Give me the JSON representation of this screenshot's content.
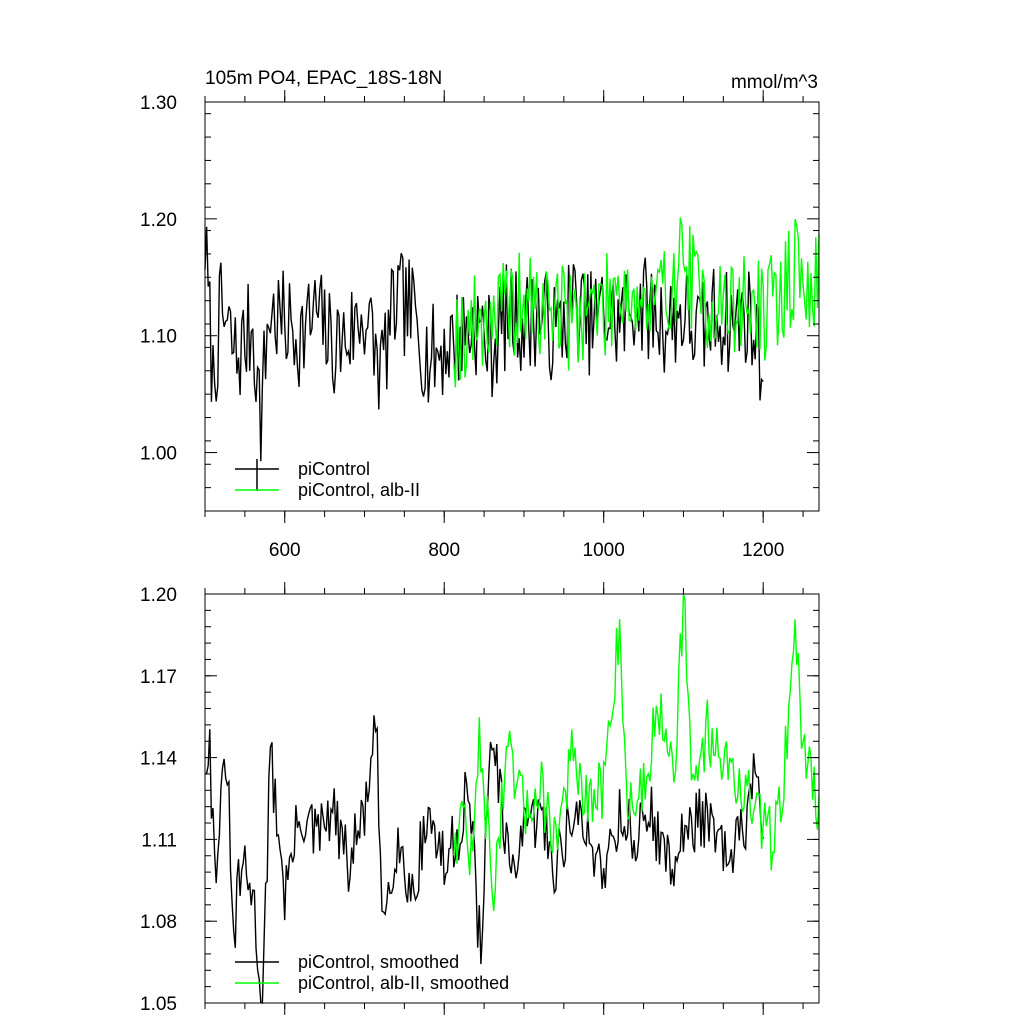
{
  "chart_data": [
    {
      "type": "line",
      "title_left": "105m PO4, EPAC_18S-18N",
      "title_right": "mmol/m^3",
      "xlim": [
        500,
        1270
      ],
      "ylim": [
        0.95,
        1.3
      ],
      "x_ticks": [
        600,
        800,
        1000,
        1200
      ],
      "x_tick_labels": [
        "600",
        "800",
        "1000",
        "1200"
      ],
      "y_ticks": [
        1.0,
        1.1,
        1.2,
        1.3
      ],
      "y_tick_labels": [
        "1.00",
        "1.10",
        "1.20",
        "1.30"
      ],
      "legend_position": "bottom-left",
      "series": [
        {
          "name": "piControl",
          "color": "#000000",
          "x_range": [
            500,
            1200
          ],
          "step": 2,
          "anchors": [
            [
              500,
              1.18
            ],
            [
              510,
              1.06
            ],
            [
              520,
              1.12
            ],
            [
              540,
              1.08
            ],
            [
              560,
              1.11
            ],
            [
              570,
              1.03
            ],
            [
              580,
              1.12
            ],
            [
              600,
              1.11
            ],
            [
              620,
              1.1
            ],
            [
              640,
              1.12
            ],
            [
              660,
              1.09
            ],
            [
              680,
              1.1
            ],
            [
              700,
              1.12
            ],
            [
              720,
              1.07
            ],
            [
              740,
              1.13
            ],
            [
              760,
              1.12
            ],
            [
              780,
              1.08
            ],
            [
              800,
              1.09
            ],
            [
              820,
              1.1
            ],
            [
              840,
              1.11
            ],
            [
              860,
              1.09
            ],
            [
              880,
              1.12
            ],
            [
              900,
              1.11
            ],
            [
              920,
              1.12
            ],
            [
              940,
              1.1
            ],
            [
              960,
              1.13
            ],
            [
              980,
              1.11
            ],
            [
              1000,
              1.12
            ],
            [
              1020,
              1.11
            ],
            [
              1040,
              1.13
            ],
            [
              1060,
              1.12
            ],
            [
              1080,
              1.11
            ],
            [
              1100,
              1.12
            ],
            [
              1120,
              1.1
            ],
            [
              1140,
              1.12
            ],
            [
              1160,
              1.11
            ],
            [
              1180,
              1.12
            ],
            [
              1200,
              1.08
            ]
          ],
          "noise": 0.045,
          "seed": 7
        },
        {
          "name": "piControl, alb-II",
          "color": "#00ff00",
          "x_range": [
            812,
            1270
          ],
          "step": 2,
          "anchors": [
            [
              812,
              1.1
            ],
            [
              840,
              1.11
            ],
            [
              860,
              1.12
            ],
            [
              880,
              1.12
            ],
            [
              900,
              1.13
            ],
            [
              920,
              1.12
            ],
            [
              940,
              1.13
            ],
            [
              960,
              1.11
            ],
            [
              980,
              1.13
            ],
            [
              1000,
              1.12
            ],
            [
              1020,
              1.15
            ],
            [
              1040,
              1.13
            ],
            [
              1060,
              1.12
            ],
            [
              1080,
              1.14
            ],
            [
              1100,
              1.17
            ],
            [
              1120,
              1.13
            ],
            [
              1140,
              1.13
            ],
            [
              1160,
              1.12
            ],
            [
              1180,
              1.13
            ],
            [
              1200,
              1.12
            ],
            [
              1220,
              1.13
            ],
            [
              1240,
              1.16
            ],
            [
              1260,
              1.13
            ],
            [
              1270,
              1.15
            ]
          ],
          "noise": 0.045,
          "seed": 19
        }
      ]
    },
    {
      "type": "line",
      "xlim": [
        500,
        1270
      ],
      "ylim": [
        1.05,
        1.2
      ],
      "x_ticks": [
        600,
        800,
        1000,
        1200
      ],
      "y_ticks": [
        1.05,
        1.08,
        1.11,
        1.14,
        1.17,
        1.2
      ],
      "y_tick_labels": [
        "1.05",
        "1.08",
        "1.11",
        "1.14",
        "1.17",
        "1.20"
      ],
      "legend_position": "bottom-left",
      "series": [
        {
          "name": "piControl, smoothed",
          "color": "#000000",
          "x_range": [
            500,
            1200
          ],
          "step": 2,
          "anchors": [
            [
              500,
              1.14
            ],
            [
              505,
              1.15
            ],
            [
              512,
              1.1
            ],
            [
              520,
              1.12
            ],
            [
              528,
              1.14
            ],
            [
              535,
              1.07
            ],
            [
              545,
              1.1
            ],
            [
              560,
              1.09
            ],
            [
              572,
              1.05
            ],
            [
              582,
              1.14
            ],
            [
              590,
              1.12
            ],
            [
              600,
              1.09
            ],
            [
              620,
              1.12
            ],
            [
              640,
              1.11
            ],
            [
              660,
              1.12
            ],
            [
              680,
              1.1
            ],
            [
              700,
              1.12
            ],
            [
              715,
              1.15
            ],
            [
              722,
              1.08
            ],
            [
              740,
              1.11
            ],
            [
              760,
              1.09
            ],
            [
              780,
              1.12
            ],
            [
              800,
              1.1
            ],
            [
              815,
              1.11
            ],
            [
              830,
              1.13
            ],
            [
              845,
              1.07
            ],
            [
              860,
              1.15
            ],
            [
              880,
              1.1
            ],
            [
              900,
              1.11
            ],
            [
              920,
              1.12
            ],
            [
              940,
              1.1
            ],
            [
              960,
              1.12
            ],
            [
              980,
              1.11
            ],
            [
              1000,
              1.1
            ],
            [
              1020,
              1.12
            ],
            [
              1040,
              1.11
            ],
            [
              1060,
              1.12
            ],
            [
              1080,
              1.1
            ],
            [
              1100,
              1.11
            ],
            [
              1120,
              1.12
            ],
            [
              1140,
              1.11
            ],
            [
              1160,
              1.1
            ],
            [
              1180,
              1.12
            ],
            [
              1190,
              1.14
            ],
            [
              1200,
              1.1
            ]
          ],
          "noise": 0.012,
          "seed": 31
        },
        {
          "name": "piControl, alb-II, smoothed",
          "color": "#00ff00",
          "x_range": [
            812,
            1270
          ],
          "step": 2,
          "anchors": [
            [
              812,
              1.11
            ],
            [
              825,
              1.12
            ],
            [
              835,
              1.1
            ],
            [
              845,
              1.15
            ],
            [
              860,
              1.09
            ],
            [
              880,
              1.14
            ],
            [
              900,
              1.12
            ],
            [
              920,
              1.13
            ],
            [
              940,
              1.11
            ],
            [
              960,
              1.14
            ],
            [
              980,
              1.12
            ],
            [
              1000,
              1.13
            ],
            [
              1020,
              1.19
            ],
            [
              1030,
              1.12
            ],
            [
              1050,
              1.13
            ],
            [
              1070,
              1.16
            ],
            [
              1090,
              1.14
            ],
            [
              1100,
              1.2
            ],
            [
              1110,
              1.13
            ],
            [
              1130,
              1.15
            ],
            [
              1150,
              1.14
            ],
            [
              1170,
              1.13
            ],
            [
              1190,
              1.12
            ],
            [
              1210,
              1.11
            ],
            [
              1225,
              1.13
            ],
            [
              1240,
              1.19
            ],
            [
              1250,
              1.14
            ],
            [
              1260,
              1.14
            ],
            [
              1270,
              1.12
            ]
          ],
          "noise": 0.012,
          "seed": 47
        }
      ]
    }
  ]
}
